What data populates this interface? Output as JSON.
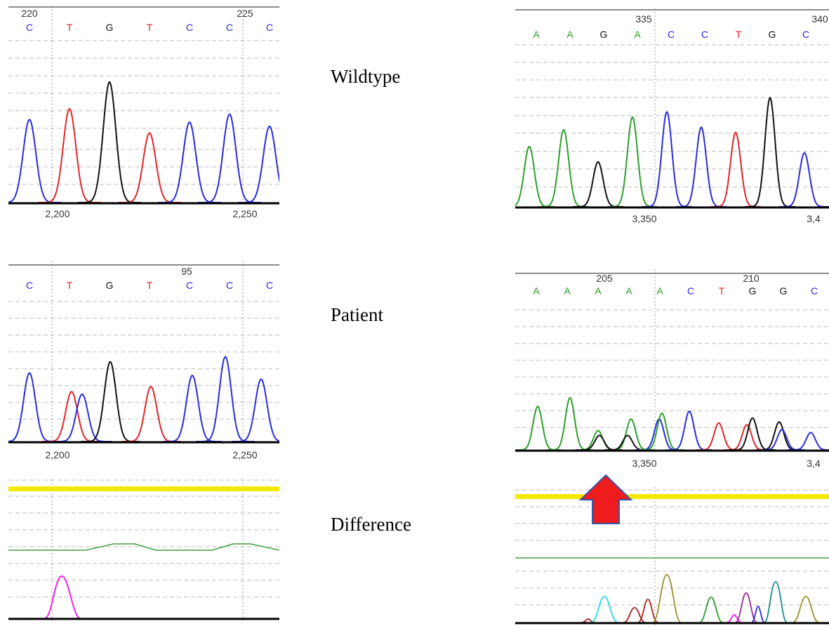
{
  "labels": {
    "wildtype": "Wildtype",
    "patient": "Patient",
    "difference": "Difference"
  },
  "colors": {
    "A": "#2ca02c",
    "C": "#2b2bdb",
    "G": "#111111",
    "T": "#e0262a",
    "diff_baseline": "#3f9f3f",
    "highlight": "#f5e800",
    "arrow": "#ee1c1c",
    "magenta": "#ee22ee",
    "cyan": "#22ddee",
    "darkred": "#aa2222",
    "olive": "#9a8f2a",
    "purple": "#9a2a9a",
    "teal": "#1a8a8a"
  },
  "panels": {
    "left_wildtype": {
      "bases": [
        "C",
        "T",
        "G",
        "T",
        "C",
        "C",
        "C"
      ],
      "positions": [
        "220",
        "225"
      ],
      "axis_ticks": [
        "2,200",
        "2,250"
      ],
      "peaks": [
        {
          "base": "C",
          "h": 0.62
        },
        {
          "base": "T",
          "h": 0.7
        },
        {
          "base": "G",
          "h": 0.9
        },
        {
          "base": "T",
          "h": 0.52
        },
        {
          "base": "C",
          "h": 0.6
        },
        {
          "base": "C",
          "h": 0.66
        },
        {
          "base": "C",
          "h": 0.57
        }
      ]
    },
    "left_patient": {
      "bases": [
        "C",
        "T",
        "G",
        "T",
        "C",
        "C",
        "C"
      ],
      "positions": [
        "95"
      ],
      "axis_ticks": [
        "2,200",
        "2,250"
      ],
      "peaks": [
        {
          "base": "C",
          "h": 0.55
        },
        {
          "base": "T",
          "h": 0.4
        },
        {
          "base": "C",
          "h": 0.38
        },
        {
          "base": "G",
          "h": 0.64
        },
        {
          "base": "T",
          "h": 0.44
        },
        {
          "base": "C",
          "h": 0.53
        },
        {
          "base": "C",
          "h": 0.68
        },
        {
          "base": "C",
          "h": 0.5
        }
      ]
    },
    "right_wildtype": {
      "bases": [
        "A",
        "A",
        "G",
        "A",
        "C",
        "C",
        "T",
        "G",
        "C"
      ],
      "positions": [
        "335",
        "340"
      ],
      "axis_ticks": [
        "3,350",
        "3,4"
      ],
      "peaks": [
        {
          "base": "A",
          "h": 0.47
        },
        {
          "base": "A",
          "h": 0.6
        },
        {
          "base": "G",
          "h": 0.35
        },
        {
          "base": "A",
          "h": 0.7
        },
        {
          "base": "C",
          "h": 0.74
        },
        {
          "base": "C",
          "h": 0.62
        },
        {
          "base": "T",
          "h": 0.58
        },
        {
          "base": "G",
          "h": 0.85
        },
        {
          "base": "C",
          "h": 0.42
        }
      ]
    },
    "right_patient": {
      "bases": [
        "A",
        "A",
        "A",
        "A",
        "A",
        "C",
        "T",
        "G",
        "G",
        "C"
      ],
      "positions": [
        "205",
        "210"
      ],
      "axis_ticks": [
        "3,350",
        "3,4"
      ],
      "peaks": [
        {
          "base": "A",
          "h": 0.45
        },
        {
          "base": "A",
          "h": 0.54
        },
        {
          "base": "A",
          "h": 0.2
        },
        {
          "base": "G",
          "h": 0.15
        },
        {
          "base": "A",
          "h": 0.32
        },
        {
          "base": "G",
          "h": 0.15
        },
        {
          "base": "C",
          "h": 0.32
        },
        {
          "base": "A",
          "h": 0.38
        },
        {
          "base": "C",
          "h": 0.4
        },
        {
          "base": "T",
          "h": 0.28
        },
        {
          "base": "T",
          "h": 0.26
        },
        {
          "base": "G",
          "h": 0.33
        },
        {
          "base": "G",
          "h": 0.29
        },
        {
          "base": "C",
          "h": 0.21
        },
        {
          "base": "C",
          "h": 0.18
        }
      ]
    }
  }
}
